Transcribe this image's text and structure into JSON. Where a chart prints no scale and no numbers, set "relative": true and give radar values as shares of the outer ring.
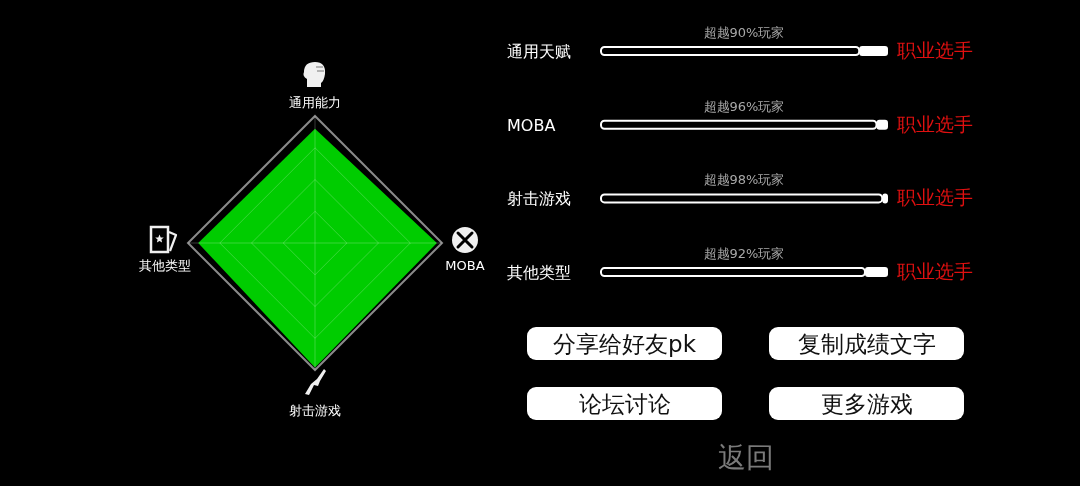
{
  "chart_data": [
    {
      "type": "radar",
      "categories": [
        "通用能力",
        "MOBA",
        "射击游戏",
        "其他类型"
      ],
      "series": [
        {
          "color": "#00cc00",
          "values": [
            0.9,
            0.96,
            0.98,
            0.92
          ]
        }
      ],
      "relative": true
    },
    {
      "type": "bar",
      "orientation": "horizontal",
      "categories": [
        "通用天赋",
        "MOBA",
        "射击游戏",
        "其他类型"
      ],
      "values": [
        90,
        96,
        98,
        92
      ],
      "color": "#000000",
      "value_labels": [
        "超越90%玩家",
        "超越96%玩家",
        "超越98%玩家",
        "超越92%玩家"
      ],
      "xlim": [
        0,
        100
      ],
      "tick_labels": "y",
      "annotations": [
        "职业选手",
        "职业选手",
        "职业选手",
        "职业选手"
      ]
    },
    {
      "type": "other",
      "annotations": [
        "分享给好友pk",
        "复制成绩文字",
        "论坛讨论",
        "更多游戏",
        "返回"
      ]
    }
  ]
}
